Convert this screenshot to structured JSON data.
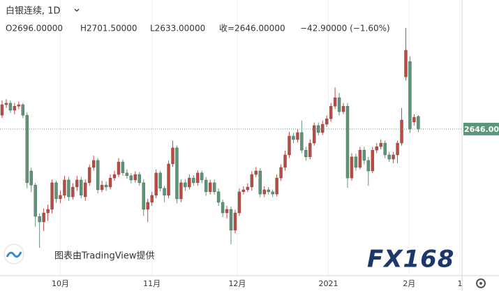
{
  "chart_data": {
    "type": "candlestick",
    "title": "白银连续, 1D",
    "legend": {
      "open": "O2696.00000",
      "high": "H2701.50000",
      "low": "L2633.00000",
      "close": "收=2646.00000",
      "change": "−42.90000 (−1.60%)"
    },
    "attribution": "图表由TradingView提供",
    "brand": "FX168",
    "up_color": "#c0493f",
    "down_color": "#5b9677",
    "xlim": [
      -0.5,
      110.5
    ],
    "xticks": [
      {
        "value": 14,
        "label": "10月"
      },
      {
        "value": 36,
        "label": "11月"
      },
      {
        "value": 56.5,
        "label": "12月"
      },
      {
        "value": 78.4,
        "label": "2021"
      },
      {
        "value": 97.8,
        "label": "2月"
      },
      {
        "value": 110,
        "label": "1"
      }
    ],
    "ylim": [
      2062,
      3160
    ],
    "last_price": {
      "value": 2646,
      "label": "2646.00"
    },
    "open": [
      2701,
      2743,
      2749,
      2721,
      2737,
      2743,
      2701,
      2479,
      2423,
      2298,
      2276,
      2312,
      2326,
      2432,
      2368,
      2382,
      2443,
      2376,
      2415,
      2443,
      2376,
      2432,
      2493,
      2521,
      2404,
      2423,
      2415,
      2451,
      2465,
      2515,
      2471,
      2460,
      2443,
      2465,
      2432,
      2326,
      2354,
      2382,
      2471,
      2410,
      2382,
      2507,
      2571,
      2368,
      2432,
      2415,
      2451,
      2432,
      2471,
      2443,
      2396,
      2432,
      2396,
      2354,
      2312,
      2326,
      2243,
      2312,
      2396,
      2404,
      2415,
      2465,
      2479,
      2387,
      2404,
      2396,
      2387,
      2451,
      2493,
      2543,
      2618,
      2604,
      2632,
      2562,
      2535,
      2590,
      2660,
      2632,
      2665,
      2687,
      2737,
      2771,
      2715,
      2737,
      2451,
      2535,
      2493,
      2562,
      2521,
      2479,
      2562,
      2576,
      2590,
      2543,
      2526,
      2543,
      2590,
      2854,
      2915,
      2674,
      2696
    ],
    "high": [
      2760,
      2765,
      2760,
      2750,
      2755,
      2750,
      2712,
      2492,
      2432,
      2310,
      2330,
      2345,
      2445,
      2440,
      2400,
      2460,
      2455,
      2430,
      2460,
      2455,
      2445,
      2505,
      2540,
      2530,
      2440,
      2438,
      2465,
      2480,
      2530,
      2525,
      2485,
      2470,
      2478,
      2475,
      2445,
      2368,
      2395,
      2485,
      2480,
      2420,
      2520,
      2600,
      2580,
      2445,
      2445,
      2465,
      2462,
      2482,
      2480,
      2455,
      2445,
      2445,
      2410,
      2365,
      2340,
      2338,
      2325,
      2410,
      2418,
      2430,
      2478,
      2495,
      2490,
      2418,
      2415,
      2405,
      2465,
      2505,
      2560,
      2635,
      2630,
      2645,
      2680,
      2575,
      2605,
      2672,
      2672,
      2680,
      2700,
      2750,
      2812,
      2790,
      2750,
      2750,
      2550,
      2548,
      2575,
      2575,
      2535,
      2575,
      2590,
      2605,
      2600,
      2555,
      2555,
      2600,
      2730,
      3049,
      2935,
      2705,
      2701.5
    ],
    "low": [
      2690,
      2730,
      2710,
      2705,
      2725,
      2690,
      2410,
      2395,
      2257,
      2173,
      2240,
      2280,
      2310,
      2352,
      2350,
      2370,
      2360,
      2365,
      2400,
      2370,
      2360,
      2420,
      2480,
      2390,
      2395,
      2400,
      2405,
      2440,
      2455,
      2460,
      2448,
      2430,
      2432,
      2420,
      2300,
      2275,
      2340,
      2370,
      2398,
      2355,
      2370,
      2495,
      2350,
      2355,
      2400,
      2405,
      2420,
      2420,
      2430,
      2380,
      2385,
      2385,
      2340,
      2295,
      2290,
      2187,
      2230,
      2300,
      2385,
      2395,
      2400,
      2455,
      2375,
      2375,
      2385,
      2375,
      2378,
      2440,
      2480,
      2530,
      2590,
      2592,
      2550,
      2520,
      2525,
      2580,
      2620,
      2622,
      2655,
      2675,
      2725,
      2700,
      2705,
      2412,
      2440,
      2480,
      2485,
      2505,
      2420,
      2470,
      2550,
      2565,
      2530,
      2515,
      2510,
      2510,
      2580,
      2840,
      2630,
      2660,
      2633
    ],
    "close": [
      2743,
      2749,
      2721,
      2737,
      2743,
      2701,
      2432,
      2423,
      2298,
      2276,
      2312,
      2326,
      2432,
      2368,
      2382,
      2443,
      2376,
      2415,
      2443,
      2382,
      2432,
      2493,
      2521,
      2404,
      2423,
      2415,
      2451,
      2465,
      2515,
      2471,
      2460,
      2443,
      2465,
      2432,
      2326,
      2354,
      2382,
      2471,
      2410,
      2382,
      2507,
      2571,
      2368,
      2432,
      2415,
      2451,
      2432,
      2471,
      2443,
      2396,
      2432,
      2396,
      2354,
      2312,
      2326,
      2243,
      2312,
      2396,
      2404,
      2415,
      2465,
      2479,
      2387,
      2404,
      2396,
      2387,
      2451,
      2493,
      2543,
      2618,
      2604,
      2632,
      2562,
      2535,
      2590,
      2660,
      2632,
      2665,
      2687,
      2737,
      2771,
      2715,
      2737,
      2451,
      2535,
      2493,
      2562,
      2521,
      2479,
      2562,
      2576,
      2590,
      2543,
      2526,
      2543,
      2590,
      2682,
      2960,
      2646,
      2693,
      2646
    ]
  }
}
